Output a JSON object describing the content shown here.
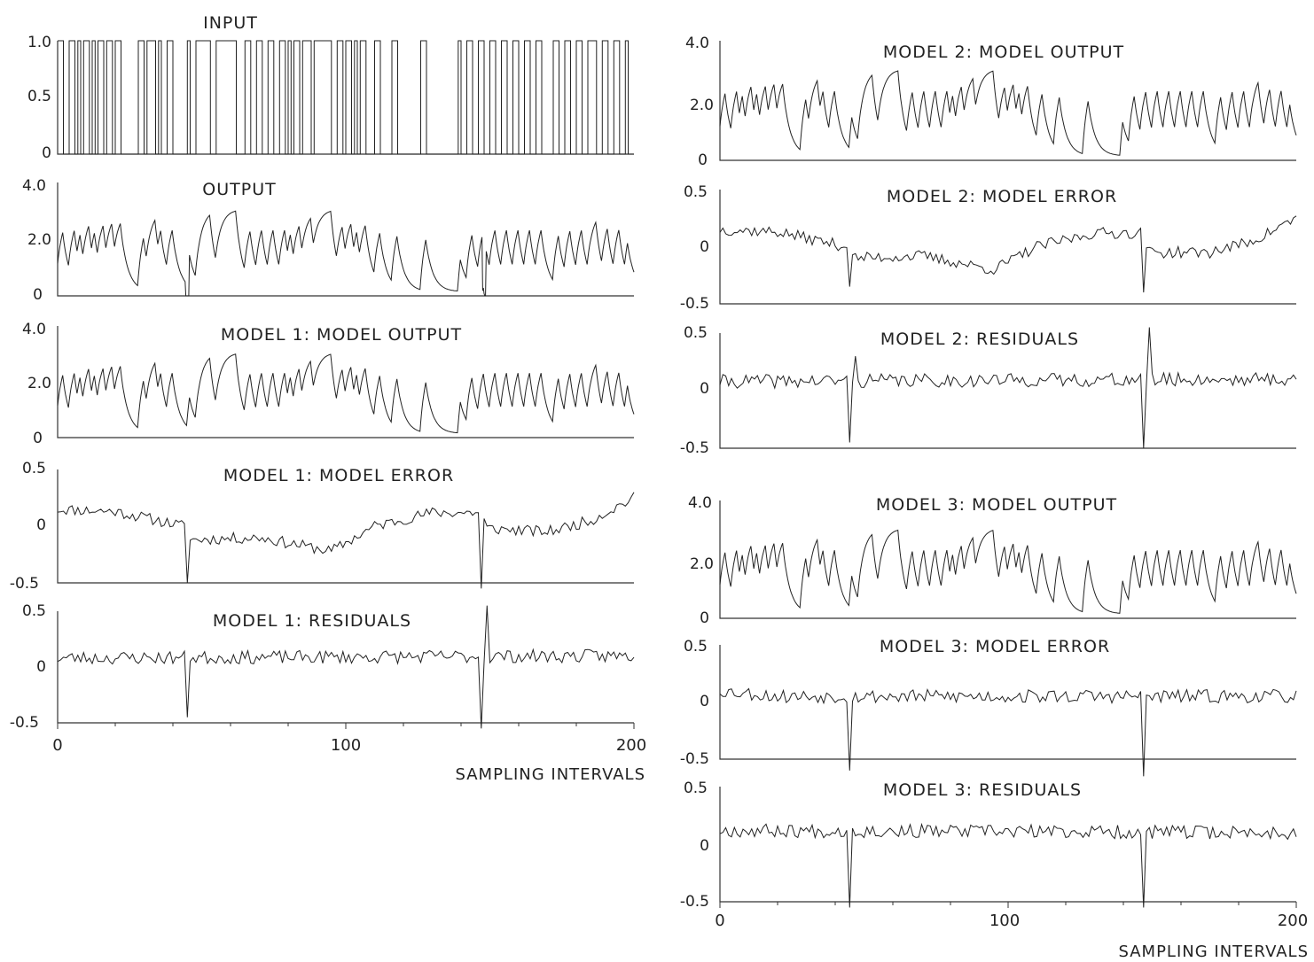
{
  "figure": {
    "left_x_caption": "SAMPLING INTERVALS",
    "right_x_caption": "SAMPLING INTERVALS",
    "left_x_ticks": [
      "0",
      "100",
      "200"
    ],
    "right_x_ticks": [
      "0",
      "100",
      "200"
    ]
  },
  "chart_data": [
    {
      "id": "input",
      "type": "line",
      "step": true,
      "title": "INPUT",
      "xlim": [
        0,
        200
      ],
      "ylim": [
        0,
        1.0
      ],
      "yticks": [
        "1.0",
        "0.5",
        "0"
      ],
      "switch_times": [
        2,
        4,
        6,
        7,
        8,
        9,
        11,
        12,
        13,
        14,
        16,
        17,
        19,
        20,
        22,
        28,
        30,
        31,
        34,
        35,
        36,
        38,
        40,
        45,
        46,
        48,
        53,
        55,
        62,
        65,
        67,
        69,
        71,
        73,
        75,
        77,
        79,
        80,
        81,
        82,
        84,
        85,
        88,
        89,
        95,
        97,
        99,
        100,
        102,
        103,
        104,
        105,
        107,
        110,
        112,
        116,
        118,
        126,
        128,
        139,
        140,
        142,
        144,
        146,
        148,
        150,
        152,
        154,
        156,
        158,
        160,
        162,
        164,
        166,
        168,
        172,
        174,
        176,
        178,
        180,
        182,
        184,
        187,
        189,
        191,
        193,
        195,
        197,
        198
      ]
    },
    {
      "id": "output",
      "type": "line",
      "title": "OUTPUT",
      "xlim": [
        0,
        200
      ],
      "ylim": [
        0,
        4.0
      ],
      "yticks": [
        "4.0",
        "2.0",
        "0"
      ],
      "disturbance_at": [
        45,
        148
      ],
      "spike_depth": -2.0
    },
    {
      "id": "m1_out",
      "type": "line",
      "title": "MODEL 1:  MODEL OUTPUT",
      "xlim": [
        0,
        200
      ],
      "ylim": [
        0,
        4.0
      ],
      "yticks": [
        "4.0",
        "2.0",
        "0"
      ]
    },
    {
      "id": "m1_err",
      "type": "line",
      "title": "MODEL 1:  MODEL ERROR",
      "xlim": [
        0,
        200
      ],
      "ylim": [
        -0.5,
        0.5
      ],
      "yticks": [
        "0.5",
        "0",
        "-0.5"
      ],
      "knots": [
        [
          0,
          0.15
        ],
        [
          20,
          0.13
        ],
        [
          44,
          0.0
        ],
        [
          46,
          -0.12
        ],
        [
          70,
          -0.1
        ],
        [
          95,
          -0.22
        ],
        [
          110,
          0.0
        ],
        [
          130,
          0.12
        ],
        [
          147,
          0.12
        ],
        [
          149,
          -0.02
        ],
        [
          170,
          -0.05
        ],
        [
          185,
          0.05
        ],
        [
          200,
          0.25
        ]
      ],
      "spikes": [
        [
          45,
          -0.5
        ],
        [
          147,
          -0.55
        ]
      ],
      "noise": 0.05
    },
    {
      "id": "m1_res",
      "type": "line",
      "title": "MODEL 1:  RESIDUALS",
      "xlim": [
        0,
        200
      ],
      "ylim": [
        -0.5,
        0.5
      ],
      "yticks": [
        "0.5",
        "0",
        "-0.5"
      ],
      "knots": [
        [
          0,
          0.08
        ],
        [
          200,
          0.1
        ]
      ],
      "spikes": [
        [
          45,
          -0.45
        ],
        [
          147,
          -0.55
        ],
        [
          149,
          0.55
        ]
      ],
      "noise": 0.06
    },
    {
      "id": "m2_out",
      "type": "line",
      "title": "MODEL 2:  MODEL OUTPUT",
      "xlim": [
        0,
        200
      ],
      "ylim": [
        0,
        4.0
      ],
      "yticks": [
        "4.0",
        "2.0",
        "0"
      ]
    },
    {
      "id": "m2_err",
      "type": "line",
      "title": "MODEL 2:  MODEL ERROR",
      "xlim": [
        0,
        200
      ],
      "ylim": [
        -0.5,
        0.5
      ],
      "yticks": [
        "0.5",
        "0",
        "-0.5"
      ],
      "knots": [
        [
          0,
          0.15
        ],
        [
          20,
          0.13
        ],
        [
          44,
          0.0
        ],
        [
          46,
          -0.1
        ],
        [
          70,
          -0.08
        ],
        [
          95,
          -0.2
        ],
        [
          110,
          0.0
        ],
        [
          130,
          0.12
        ],
        [
          147,
          0.12
        ],
        [
          149,
          -0.05
        ],
        [
          170,
          -0.05
        ],
        [
          185,
          0.05
        ],
        [
          200,
          0.25
        ]
      ],
      "spikes": [
        [
          45,
          -0.35
        ],
        [
          147,
          -0.4
        ]
      ],
      "noise": 0.05
    },
    {
      "id": "m2_res",
      "type": "line",
      "title": "MODEL 2:  RESIDUALS",
      "xlim": [
        0,
        200
      ],
      "ylim": [
        -0.5,
        0.5
      ],
      "yticks": [
        "0.5",
        "0",
        "-0.5"
      ],
      "knots": [
        [
          0,
          0.08
        ],
        [
          200,
          0.1
        ]
      ],
      "spikes": [
        [
          45,
          -0.45
        ],
        [
          47,
          0.3
        ],
        [
          147,
          -0.5
        ],
        [
          149,
          0.55
        ]
      ],
      "noise": 0.06
    },
    {
      "id": "m3_out",
      "type": "line",
      "title": "MODEL 3:  MODEL OUTPUT",
      "xlim": [
        0,
        200
      ],
      "ylim": [
        0,
        4.0
      ],
      "yticks": [
        "4.0",
        "2.0",
        "0"
      ]
    },
    {
      "id": "m3_err",
      "type": "line",
      "title": "MODEL 3:  MODEL ERROR",
      "xlim": [
        0,
        200
      ],
      "ylim": [
        -0.5,
        0.5
      ],
      "yticks": [
        "0.5",
        "0",
        "-0.5"
      ],
      "knots": [
        [
          0,
          0.1
        ],
        [
          20,
          0.05
        ],
        [
          200,
          0.05
        ]
      ],
      "spikes": [
        [
          45,
          -0.6
        ],
        [
          147,
          -0.65
        ]
      ],
      "noise": 0.06
    },
    {
      "id": "m3_res",
      "type": "line",
      "title": "MODEL 3:  RESIDUALS",
      "xlim": [
        0,
        200
      ],
      "ylim": [
        -0.5,
        0.5
      ],
      "yticks": [
        "0.5",
        "0",
        "-0.5"
      ],
      "knots": [
        [
          0,
          0.12
        ],
        [
          200,
          0.1
        ]
      ],
      "spikes": [
        [
          45,
          -0.55
        ],
        [
          147,
          -0.55
        ]
      ],
      "noise": 0.06
    }
  ]
}
